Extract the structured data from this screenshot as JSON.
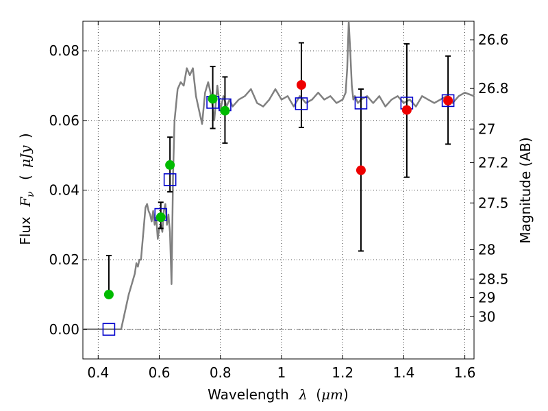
{
  "chart_data": {
    "type": "scatter",
    "xlabel": {
      "main": "Wavelength",
      "symbol": "λ",
      "unit_open": "(",
      "unit": "μm",
      "unit_close": ")"
    },
    "ylabel": {
      "main": "Flux",
      "symbol": "F",
      "subscript": "ν",
      "unit_open": "(",
      "unit": "μJy",
      "unit_close": ")"
    },
    "ylabel_right": "Magnitude (AB)",
    "xlim": [
      0.35,
      1.63
    ],
    "ylim": [
      -0.0085,
      0.0885
    ],
    "grid": true,
    "xticks": [
      {
        "value": 0.4,
        "label": "0.4"
      },
      {
        "value": 0.6,
        "label": "0.6"
      },
      {
        "value": 0.8,
        "label": "0.8"
      },
      {
        "value": 1.0,
        "label": "1"
      },
      {
        "value": 1.2,
        "label": "1.2"
      },
      {
        "value": 1.4,
        "label": "1.4"
      },
      {
        "value": 1.6,
        "label": "1.6"
      }
    ],
    "yticks": [
      {
        "value": 0.0,
        "label": "0.00"
      },
      {
        "value": 0.02,
        "label": "0.02"
      },
      {
        "value": 0.04,
        "label": "0.04"
      },
      {
        "value": 0.06,
        "label": "0.06"
      },
      {
        "value": 0.08,
        "label": "0.08"
      }
    ],
    "mag_ticks": [
      {
        "value": 26.6,
        "label": "26.6"
      },
      {
        "value": 26.8,
        "label": "26.8"
      },
      {
        "value": 27.0,
        "label": "27"
      },
      {
        "value": 27.2,
        "label": "27.2"
      },
      {
        "value": 27.5,
        "label": "27.5"
      },
      {
        "value": 28.0,
        "label": "28"
      },
      {
        "value": 28.5,
        "label": "28.5"
      },
      {
        "value": 29.0,
        "label": "29"
      },
      {
        "value": 30.0,
        "label": "30"
      }
    ],
    "colors": {
      "spectrum": "#808080",
      "green": "#00bb00",
      "red": "#ee0000",
      "model_box": "#0000cc",
      "errorbar": "#000000"
    },
    "series": [
      {
        "kind": "line",
        "x": [
          0.35,
          0.46,
          0.475,
          0.49,
          0.5,
          0.51,
          0.52,
          0.525,
          0.53,
          0.535,
          0.54,
          0.545,
          0.55,
          0.555,
          0.56,
          0.565,
          0.57,
          0.575,
          0.58,
          0.585,
          0.59,
          0.595,
          0.6,
          0.605,
          0.61,
          0.615,
          0.62,
          0.625,
          0.63,
          0.635,
          0.64,
          0.645,
          0.65,
          0.66,
          0.67,
          0.68,
          0.69,
          0.7,
          0.71,
          0.72,
          0.73,
          0.74,
          0.75,
          0.76,
          0.77,
          0.78,
          0.79,
          0.8,
          0.81,
          0.82,
          0.83,
          0.84,
          0.86,
          0.88,
          0.9,
          0.92,
          0.94,
          0.96,
          0.98,
          1.0,
          1.02,
          1.04,
          1.06,
          1.08,
          1.1,
          1.12,
          1.14,
          1.16,
          1.18,
          1.2,
          1.21,
          1.215,
          1.22,
          1.225,
          1.23,
          1.235,
          1.24,
          1.25,
          1.26,
          1.28,
          1.3,
          1.32,
          1.34,
          1.36,
          1.38,
          1.4,
          1.42,
          1.44,
          1.46,
          1.48,
          1.5,
          1.52,
          1.54,
          1.56,
          1.58,
          1.6,
          1.63
        ],
        "y": [
          0.0,
          0.0,
          0.0,
          0.006,
          0.01,
          0.013,
          0.016,
          0.019,
          0.018,
          0.02,
          0.02,
          0.025,
          0.03,
          0.035,
          0.036,
          0.034,
          0.033,
          0.031,
          0.034,
          0.03,
          0.032,
          0.026,
          0.029,
          0.03,
          0.028,
          0.034,
          0.036,
          0.03,
          0.033,
          0.028,
          0.013,
          0.044,
          0.06,
          0.069,
          0.071,
          0.07,
          0.075,
          0.073,
          0.075,
          0.067,
          0.063,
          0.059,
          0.068,
          0.071,
          0.067,
          0.06,
          0.07,
          0.063,
          0.067,
          0.064,
          0.066,
          0.064,
          0.066,
          0.067,
          0.069,
          0.065,
          0.064,
          0.066,
          0.069,
          0.066,
          0.067,
          0.064,
          0.067,
          0.065,
          0.066,
          0.068,
          0.066,
          0.067,
          0.065,
          0.066,
          0.068,
          0.075,
          0.0885,
          0.08,
          0.07,
          0.066,
          0.067,
          0.065,
          0.066,
          0.067,
          0.065,
          0.067,
          0.064,
          0.066,
          0.067,
          0.065,
          0.066,
          0.064,
          0.067,
          0.066,
          0.065,
          0.066,
          0.067,
          0.065,
          0.067,
          0.068,
          0.067
        ]
      },
      {
        "kind": "points",
        "marker": "circle",
        "color": "green",
        "x": [
          0.435,
          0.605,
          0.635,
          0.775,
          0.815
        ],
        "y": [
          0.01,
          0.0322,
          0.0472,
          0.0662,
          0.0628
        ],
        "yerr_low": [
          0.01,
          0.029,
          0.0395,
          0.0577,
          0.0535
        ],
        "yerr_high": [
          0.0212,
          0.0365,
          0.0552,
          0.0755,
          0.0725
        ]
      },
      {
        "kind": "points",
        "marker": "circle",
        "color": "red",
        "x": [
          1.065,
          1.26,
          1.41,
          1.545
        ],
        "y": [
          0.0702,
          0.0457,
          0.063,
          0.0657
        ],
        "yerr_low": [
          0.058,
          0.0225,
          0.0437,
          0.0532
        ],
        "yerr_high": [
          0.0823,
          0.069,
          0.082,
          0.0785
        ]
      },
      {
        "kind": "points",
        "marker": "open-square",
        "color": "model_box",
        "x": [
          0.435,
          0.605,
          0.635,
          0.775,
          0.815,
          1.065,
          1.26,
          1.41,
          1.545
        ],
        "y": [
          0.0,
          0.033,
          0.043,
          0.0652,
          0.0645,
          0.0648,
          0.065,
          0.065,
          0.0657
        ]
      }
    ]
  }
}
